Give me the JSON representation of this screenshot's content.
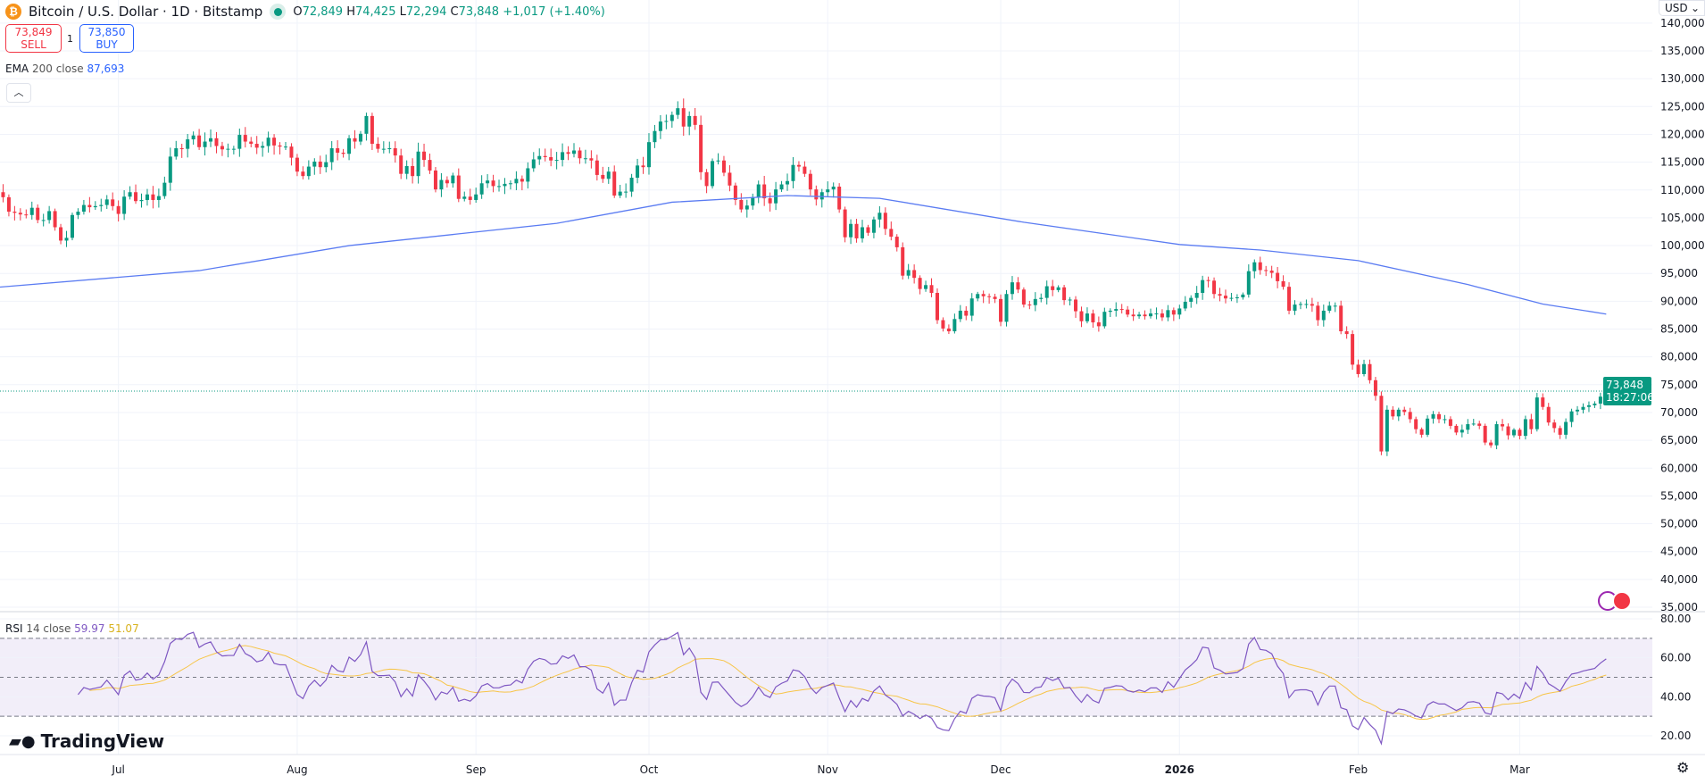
{
  "header": {
    "title": "Bitcoin / U.S. Dollar · 1D · Bitstamp",
    "open_label": "O",
    "open": "72,849",
    "high_label": "H",
    "high": "74,425",
    "low_label": "L",
    "low": "72,294",
    "close_label": "C",
    "close": "73,848",
    "change": "+1,017 (+1.40%)",
    "icon": "bitcoin-icon"
  },
  "trade": {
    "sell_price": "73,849",
    "sell_label": "SELL",
    "qty": "1",
    "buy_price": "73,850",
    "buy_label": "BUY"
  },
  "ema_legend": {
    "name": "EMA",
    "params": "200 close",
    "value": "87,693"
  },
  "rsi_legend": {
    "name": "RSI",
    "params": "14 close",
    "value": "59.97",
    "ma_value": "51.07"
  },
  "currency": "USD",
  "last_price": {
    "price": "73,848",
    "countdown": "18:27:06"
  },
  "logo": "TradingView",
  "colors": {
    "up": "#089981",
    "down": "#f23645",
    "ema": "#5b7cf2",
    "rsi": "#7e57c2",
    "rsi_ma": "#f7c548",
    "band": "#7e57c2"
  },
  "chart_data": {
    "type": "candlestick",
    "start_date": "2025-06-10",
    "interval": "1D",
    "price_axis": {
      "range": [
        35000,
        140000
      ],
      "ticks": [
        "140,000",
        "135,000",
        "130,000",
        "125,000",
        "120,000",
        "115,000",
        "110,000",
        "105,000",
        "100,000",
        "95,000",
        "90,000",
        "85,000",
        "80,000",
        "75,000",
        "70,000",
        "65,000",
        "60,000",
        "55,000",
        "50,000",
        "45,000",
        "40,000",
        "35,000"
      ]
    },
    "time_axis": {
      "ticks": [
        {
          "date": "2025-07-01",
          "label": "Jul"
        },
        {
          "date": "2025-08-01",
          "label": "Aug"
        },
        {
          "date": "2025-09-01",
          "label": "Sep"
        },
        {
          "date": "2025-10-01",
          "label": "Oct"
        },
        {
          "date": "2025-11-01",
          "label": "Nov"
        },
        {
          "date": "2025-12-01",
          "label": "Dec"
        },
        {
          "date": "2026-01-01",
          "label": "2026",
          "bold": true
        },
        {
          "date": "2026-02-01",
          "label": "Feb"
        },
        {
          "date": "2026-03-01",
          "label": "Mar"
        }
      ]
    },
    "closes": [
      109600,
      108700,
      106100,
      105900,
      105600,
      105500,
      106800,
      104600,
      104600,
      106200,
      103300,
      100900,
      101400,
      105500,
      106100,
      107300,
      106900,
      107100,
      107300,
      108300,
      107100,
      105700,
      108800,
      109600,
      108000,
      108200,
      109200,
      108200,
      108900,
      111300,
      116000,
      117500,
      117400,
      119100,
      119800,
      117700,
      118700,
      119300,
      117900,
      117300,
      117400,
      117400,
      119900,
      118700,
      118300,
      117600,
      117900,
      119400,
      118000,
      117800,
      117800,
      115800,
      113300,
      112500,
      114200,
      115100,
      114100,
      115000,
      117500,
      116700,
      116500,
      119300,
      118700,
      120100,
      123300,
      118300,
      117400,
      117400,
      117500,
      116200,
      112900,
      114300,
      112500,
      116900,
      115400,
      113500,
      110100,
      111800,
      111200,
      112600,
      108400,
      108800,
      108200,
      109200,
      111200,
      111700,
      110700,
      110700,
      111100,
      111200,
      112000,
      111500,
      113900,
      115500,
      116100,
      115900,
      115300,
      115400,
      116800,
      116500,
      117100,
      115700,
      115700,
      115300,
      112700,
      112000,
      113300,
      109000,
      109700,
      109700,
      112200,
      114400,
      114100,
      118600,
      120600,
      122300,
      122400,
      123500,
      124700,
      121400,
      123300,
      121700,
      113200,
      110700,
      115200,
      115300,
      113100,
      110800,
      108200,
      106500,
      107200,
      108700,
      111000,
      108500,
      107600,
      110100,
      111000,
      111600,
      114500,
      114200,
      112900,
      110100,
      108300,
      109600,
      110100,
      110600,
      106500,
      101500,
      103900,
      101300,
      103300,
      102300,
      104700,
      105900,
      103000,
      101600,
      99700,
      94600,
      95600,
      94200,
      92200,
      92900,
      91500,
      86600,
      85100,
      84600,
      86800,
      88300,
      87400,
      90500,
      91300,
      90900,
      90800,
      90400,
      86300,
      91300,
      93400,
      92100,
      89400,
      89300,
      90400,
      90600,
      92700,
      92000,
      92500,
      90200,
      90300,
      88200,
      86400,
      87800,
      86200,
      85500,
      88100,
      88300,
      88600,
      88500,
      87600,
      87300,
      87600,
      87300,
      87800,
      87800,
      87100,
      88400,
      87600,
      88700,
      89900,
      90600,
      91500,
      93800,
      93700,
      91300,
      91000,
      90500,
      90600,
      90700,
      91200,
      95400,
      97000,
      95600,
      95500,
      95100,
      93600,
      92600,
      88300,
      89400,
      89500,
      89500,
      89200,
      86600,
      88300,
      89200,
      89200,
      84600,
      84100,
      78600,
      76900,
      78700,
      75800,
      73000,
      63000,
      70500,
      69300,
      70500,
      70100,
      68800,
      67000,
      66000,
      68900,
      69700,
      68800,
      68800,
      67600,
      66400,
      66900,
      67900,
      68000,
      67600,
      64600,
      64100,
      67900,
      67500,
      65900,
      66900,
      65800,
      68800,
      67000,
      72700,
      71000,
      68200,
      67200,
      66000,
      68300,
      70200,
      70500,
      71000,
      71300,
      71600,
      72849,
      73848
    ],
    "ema200": [
      {
        "date": "2025-06-10",
        "value": 92500
      },
      {
        "date": "2025-07-15",
        "value": 95500
      },
      {
        "date": "2025-08-10",
        "value": 100000
      },
      {
        "date": "2025-09-15",
        "value": 104000
      },
      {
        "date": "2025-10-05",
        "value": 107800
      },
      {
        "date": "2025-10-25",
        "value": 109000
      },
      {
        "date": "2025-11-10",
        "value": 108500
      },
      {
        "date": "2025-12-05",
        "value": 104200
      },
      {
        "date": "2026-01-01",
        "value": 100200
      },
      {
        "date": "2026-01-15",
        "value": 99200
      },
      {
        "date": "2026-02-01",
        "value": 97300
      },
      {
        "date": "2026-02-20",
        "value": 93000
      },
      {
        "date": "2026-03-05",
        "value": 89500
      },
      {
        "date": "2026-03-16",
        "value": 87693
      }
    ],
    "rsi": {
      "period": 14,
      "ma_period": 14,
      "upper": 70,
      "middle": 50,
      "lower": 30,
      "range": [
        10,
        85
      ],
      "ticks": [
        "80.00",
        "60.00",
        "40.00",
        "20.00"
      ]
    }
  }
}
